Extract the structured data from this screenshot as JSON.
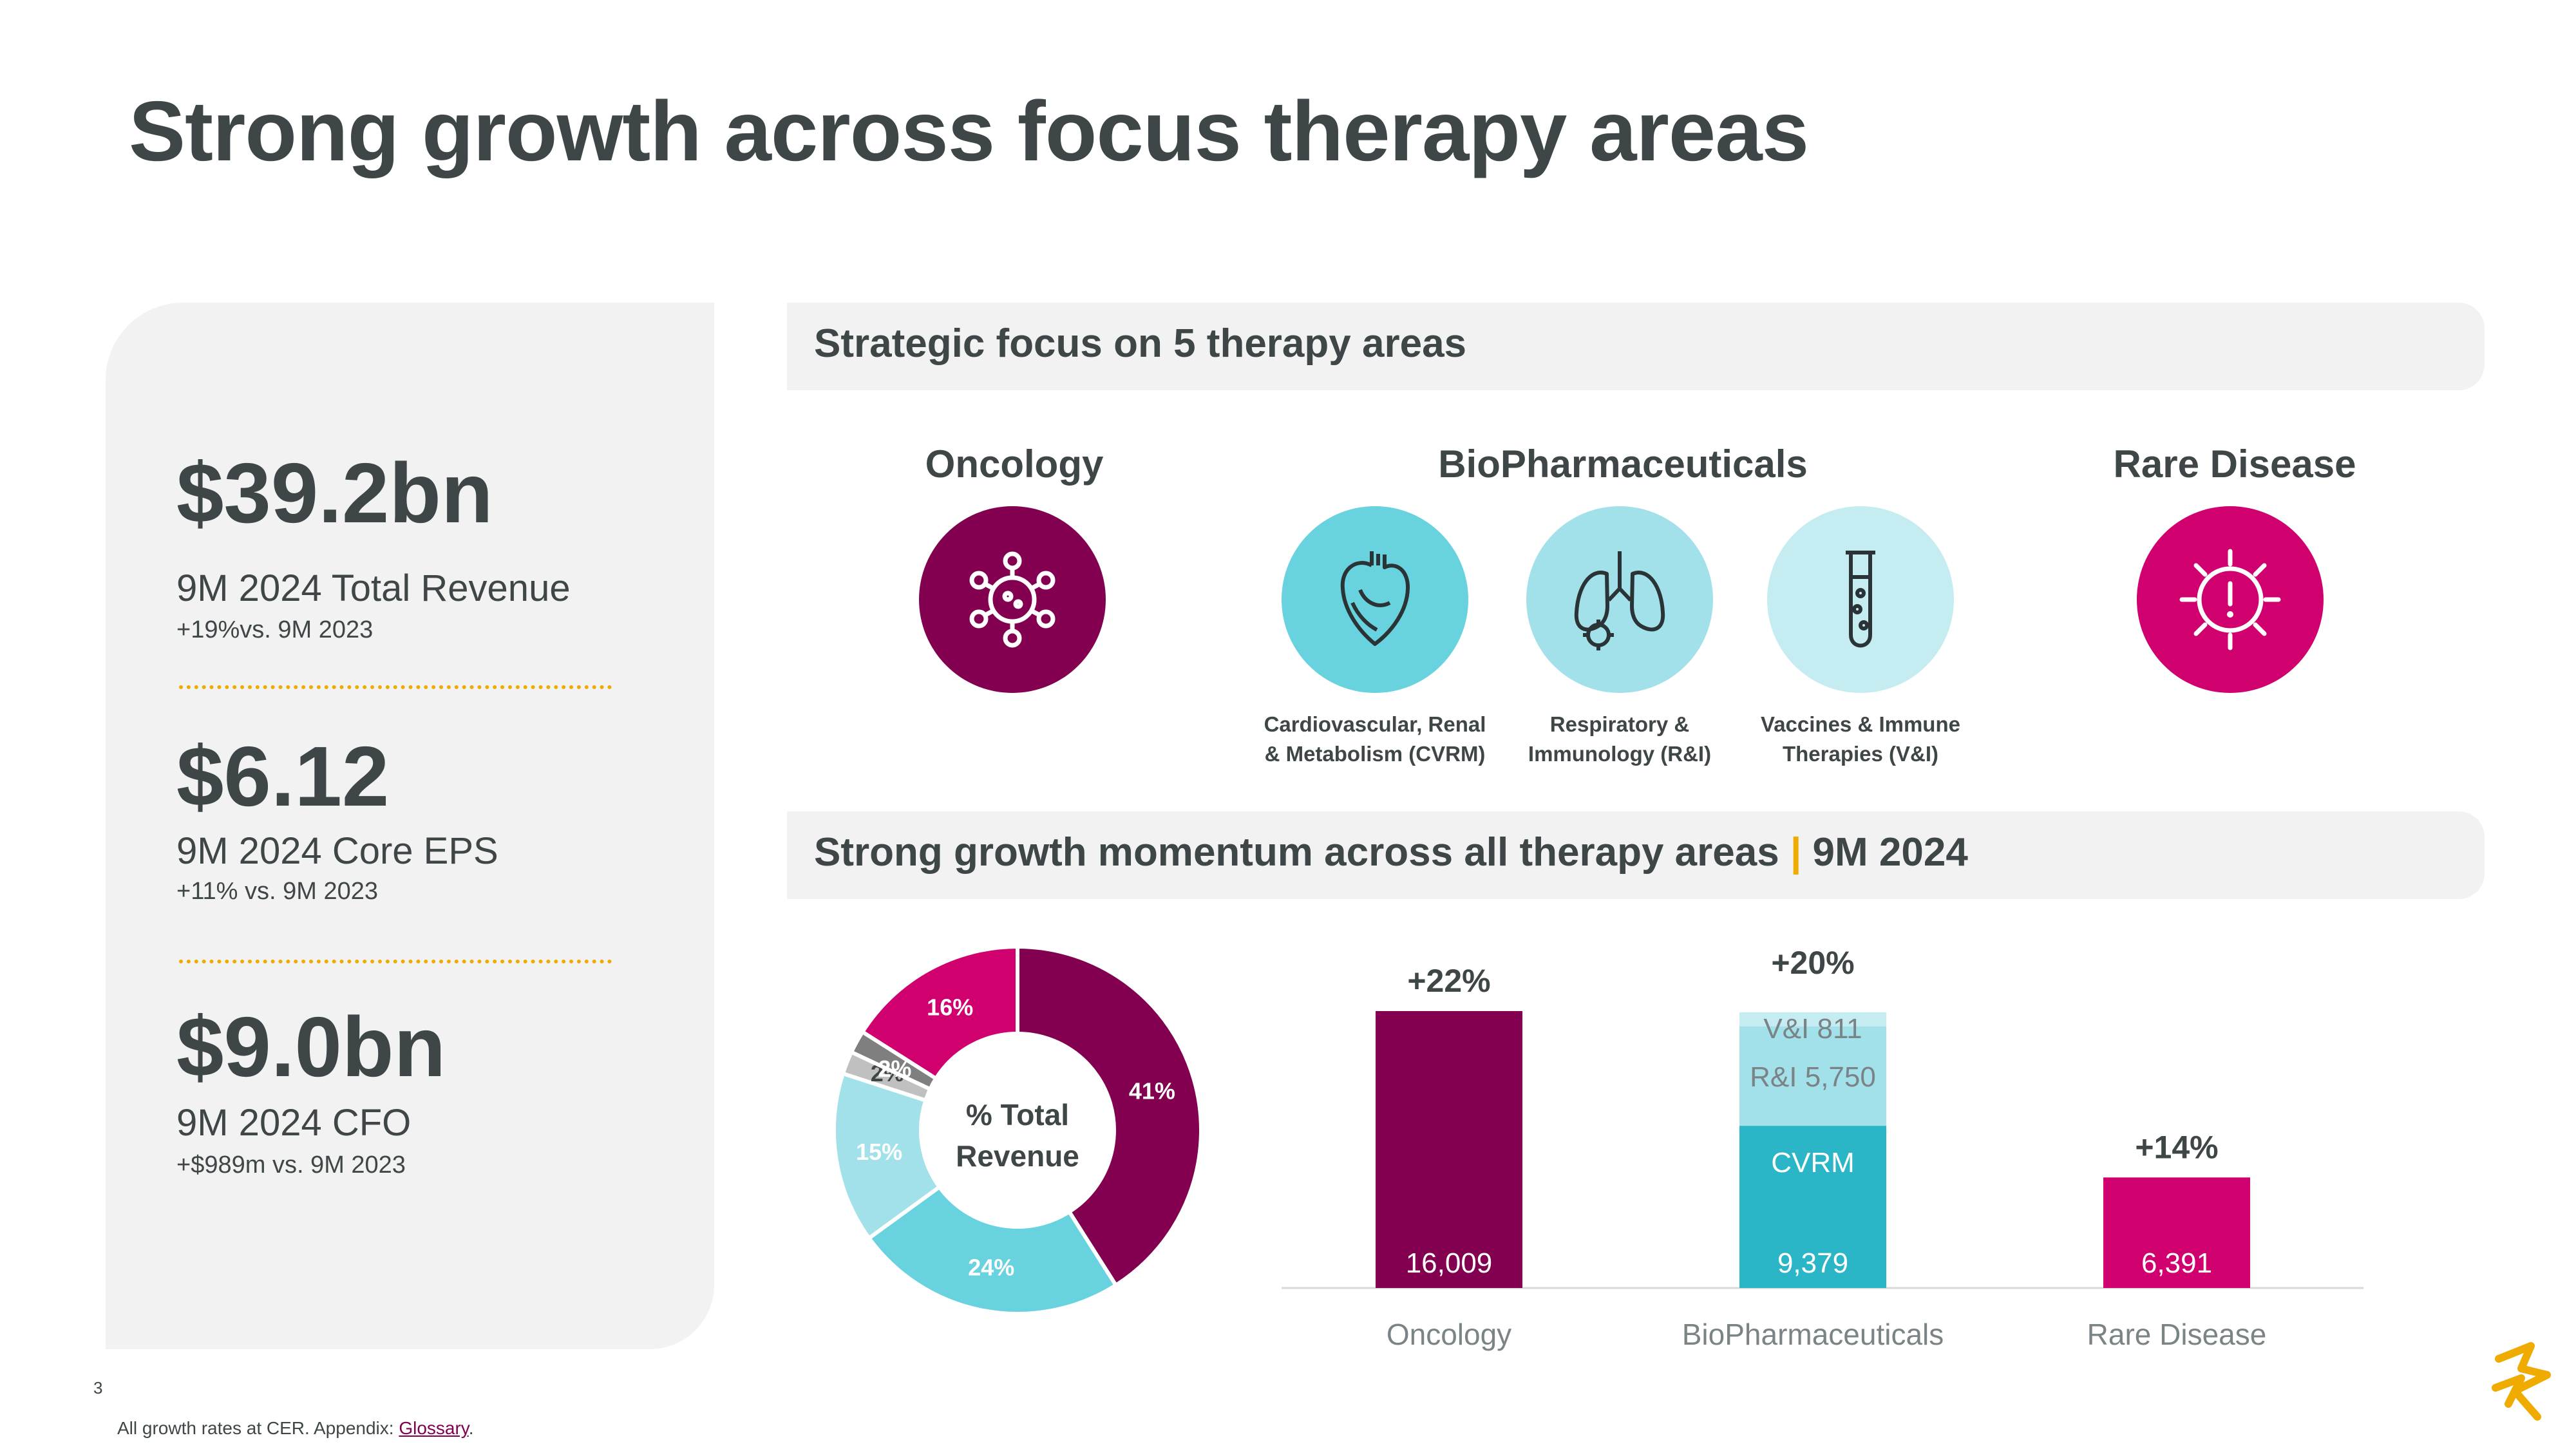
{
  "title": "Strong growth across focus therapy areas",
  "kpis": [
    {
      "value": "$39.2bn",
      "label": "9M 2024 Total Revenue",
      "sub": "+19%vs. 9M 2023"
    },
    {
      "value": "$6.12",
      "label": "9M 2024 Core EPS",
      "sub": "+11% vs. 9M 2023"
    },
    {
      "value": "$9.0bn",
      "label": "9M 2024 CFO",
      "sub": "+$989m vs. 9M 2023"
    }
  ],
  "section1": {
    "title": "Strategic focus on 5 therapy areas"
  },
  "therapy_groups": {
    "oncology": "Oncology",
    "biopharma": "BioPharmaceuticals",
    "rare": "Rare Disease"
  },
  "therapy_captions": {
    "cvrm": [
      "Cardiovascular, Renal",
      "& Metabolism (CVRM)"
    ],
    "ri": [
      "Respiratory &",
      "Immunology (R&I)"
    ],
    "vi": [
      "Vaccines & Immune",
      "Therapies (V&I)"
    ]
  },
  "icons": {
    "oncology": "virus-cell-icon",
    "cvrm": "heart-icon",
    "ri": "lungs-icon",
    "vi": "test-tube-icon",
    "rare": "sun-alert-icon"
  },
  "section2": {
    "title": "Strong growth momentum across all therapy areas",
    "separator": "|",
    "period": "9M 2024"
  },
  "colors": {
    "oncology": "#830051",
    "cvrm": "#2bb6c8",
    "cvrm_light": "#68d2df",
    "ri": "#a2e1ea",
    "vi": "#c5ecf1",
    "rare": "#d0006f",
    "other": "#8c8c8c",
    "accent": "#f0ab00",
    "text": "#3f4647"
  },
  "chart_data": [
    {
      "type": "pie",
      "title": "% Total Revenue",
      "values": [
        41,
        24,
        15,
        2,
        2,
        16
      ],
      "labels": [
        "41%",
        "24%",
        "15%",
        "2%",
        "2%",
        "16%"
      ],
      "colors": [
        "#830051",
        "#68d2df",
        "#a2e1ea",
        "#c0c0c0",
        "#7f7f7f",
        "#d0006f"
      ]
    },
    {
      "type": "bar",
      "categories": [
        "Oncology",
        "BioPharmaceuticals",
        "Rare Disease"
      ],
      "growth_labels": [
        "+22%",
        "+20%",
        "+14%"
      ],
      "series": [
        {
          "name": "",
          "values": [
            16009,
            null,
            6391
          ],
          "labels": [
            "16,009",
            "",
            "6,391"
          ]
        },
        {
          "name": "CVRM",
          "values": [
            null,
            9379,
            null
          ],
          "labels": [
            "",
            "9,379",
            ""
          ]
        },
        {
          "name": "R&I",
          "values": [
            null,
            5750,
            null
          ],
          "labels": [
            "",
            "R&I 5,750",
            ""
          ]
        },
        {
          "name": "V&I",
          "values": [
            null,
            811,
            null
          ],
          "labels": [
            "",
            "V&I 811",
            ""
          ]
        }
      ]
    }
  ],
  "page_number": "3",
  "footnote": {
    "text": "All growth rates at CER. Appendix: ",
    "link": "Glossary",
    "end": "."
  }
}
